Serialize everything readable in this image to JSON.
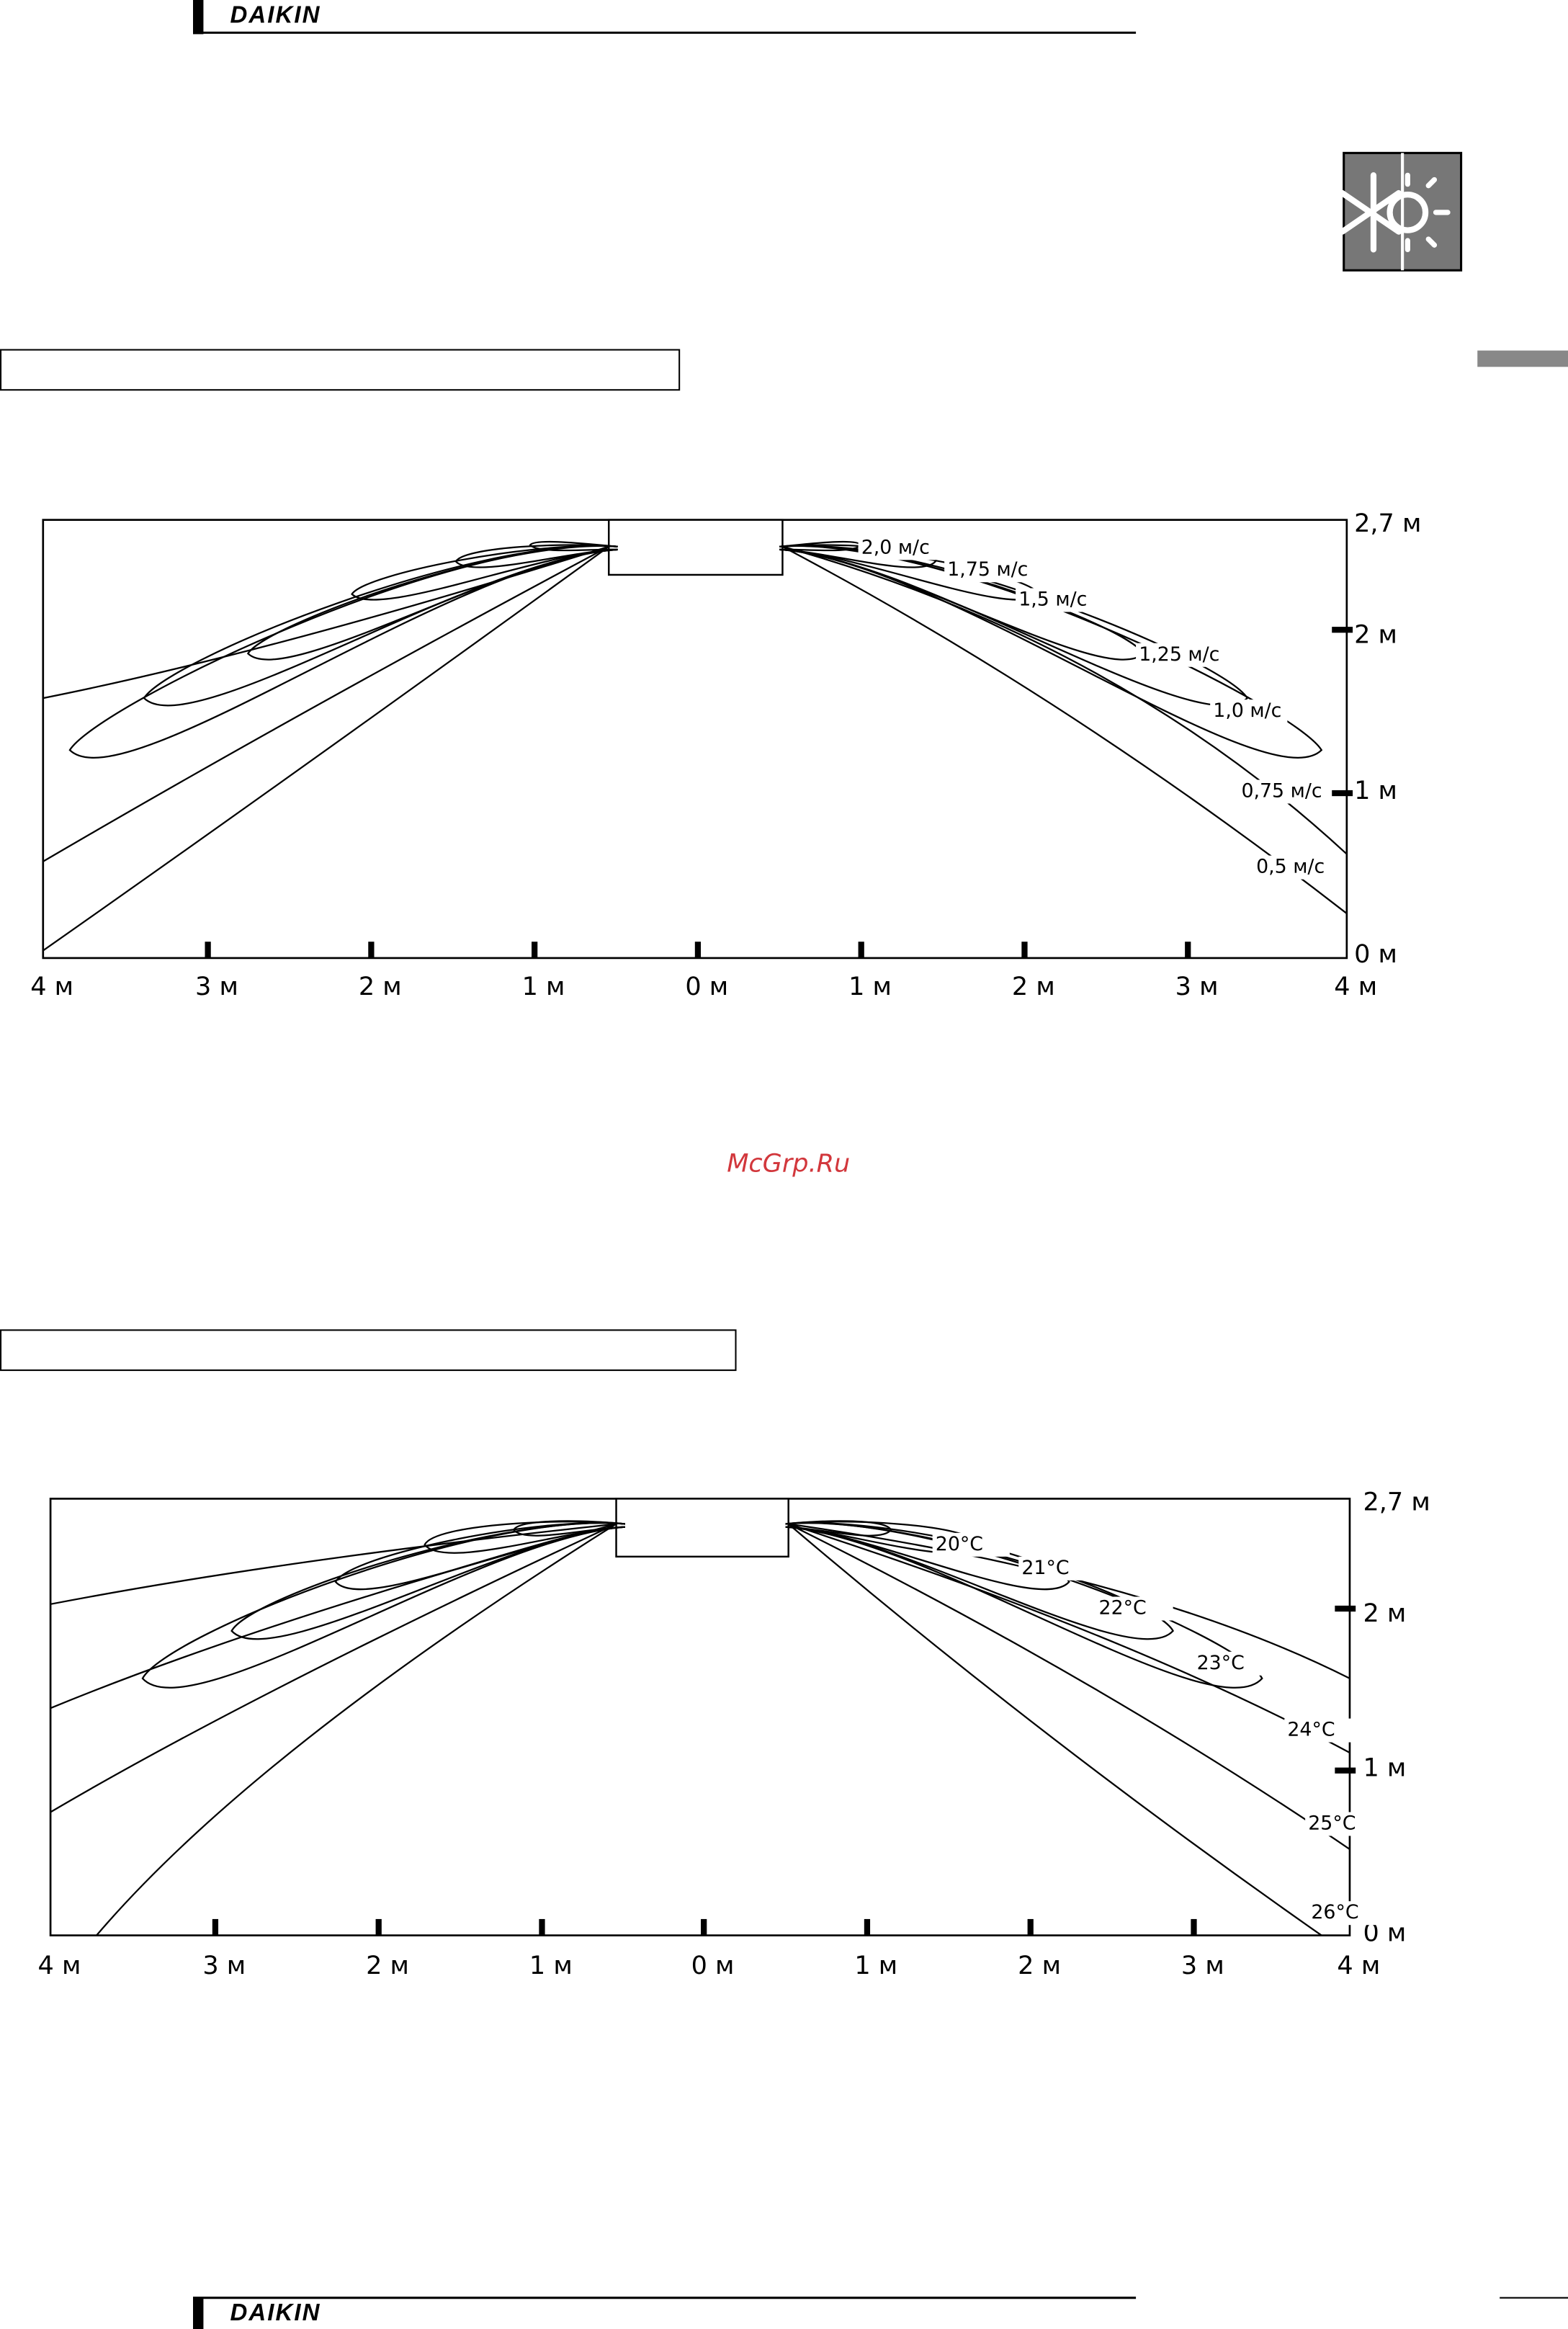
{
  "header": {
    "brand": "DAIKIN"
  },
  "watermark": "McGrp.Ru",
  "footer": {
    "brand": "DAIKIN"
  },
  "diagrams": [
    {
      "x_labels": [
        "4 м",
        "3 м",
        "2 м",
        "1 м",
        "0 м",
        "1 м",
        "2 м",
        "3 м",
        "4 м"
      ],
      "y_labels": [
        "2,7 м",
        "2 м",
        "1 м",
        "0 м"
      ],
      "contour_labels": [
        "2,0 м/с",
        "1,75 м/с",
        "1,5 м/с",
        "1,25 м/с",
        "1,0 м/с",
        "0,75 м/с",
        "0,5 м/с"
      ]
    },
    {
      "x_labels": [
        "4 м",
        "3 м",
        "2 м",
        "1 м",
        "0 м",
        "1 м",
        "2 м",
        "3 м",
        "4 м"
      ],
      "y_labels": [
        "2,7 м",
        "2 м",
        "1 м",
        "0 м"
      ],
      "contour_labels": [
        "20°C",
        "21°C",
        "22°C",
        "23°C",
        "24°C",
        "25°C",
        "26°C"
      ]
    }
  ]
}
